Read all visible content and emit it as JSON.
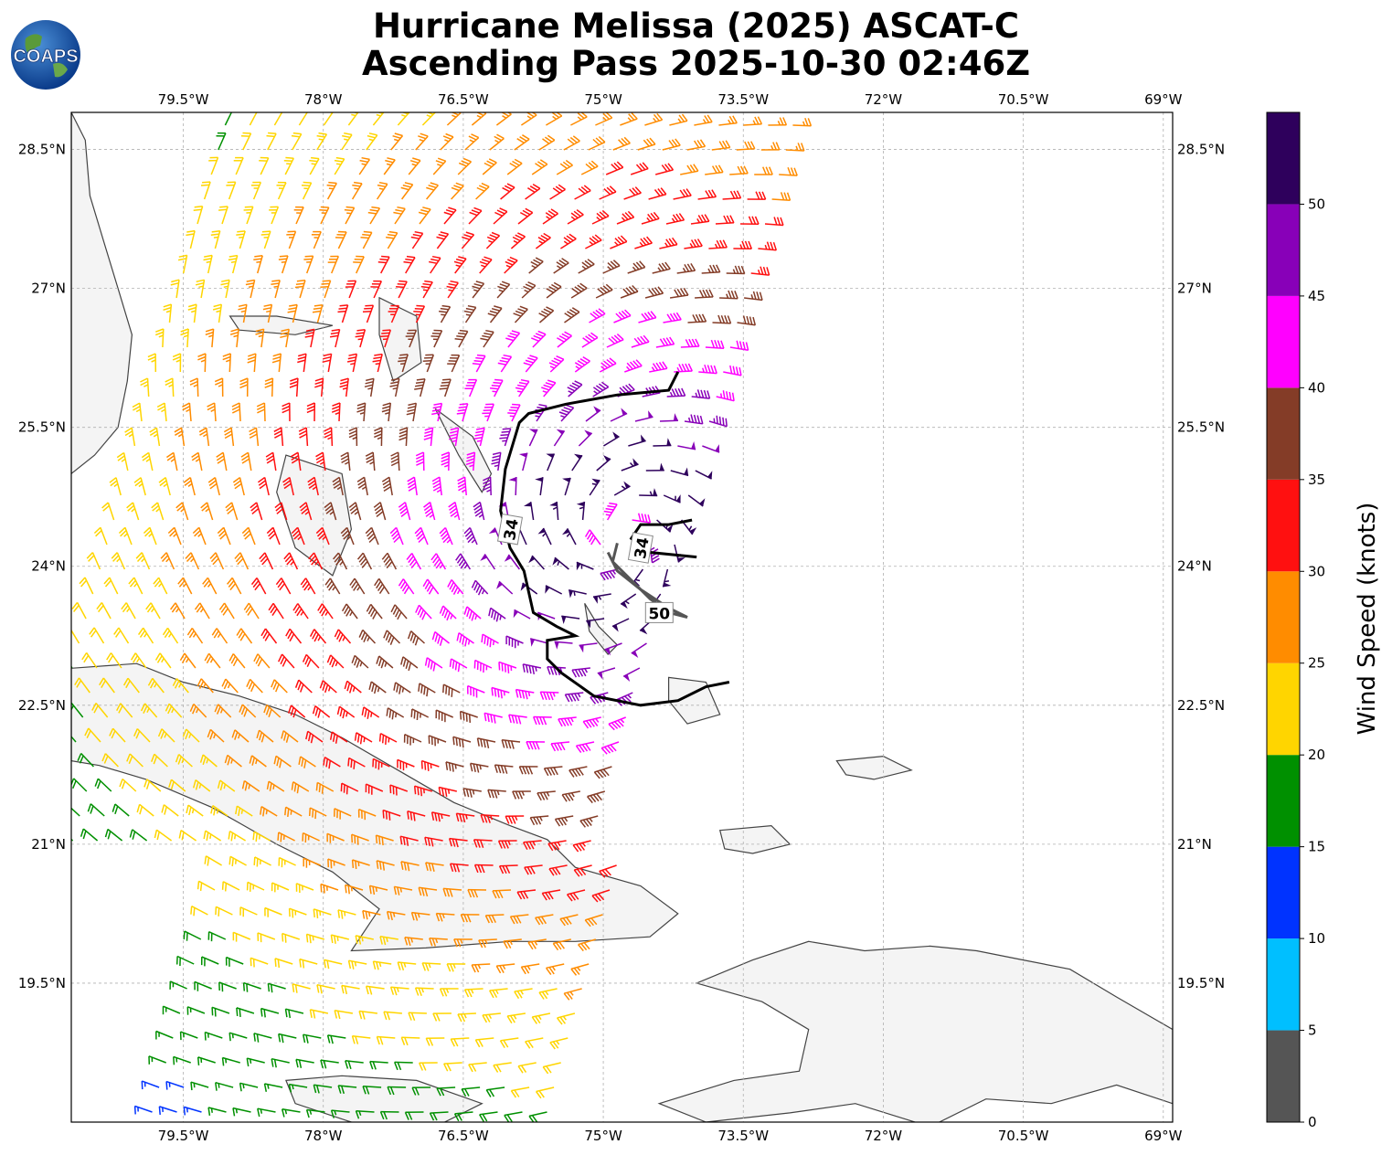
{
  "title": {
    "line1": "Hurricane Melissa (2025) ASCAT-C",
    "line2": "Ascending Pass 2025-10-30 02:46Z"
  },
  "logo": {
    "text": "COAPS",
    "icon": "globe-icon"
  },
  "map": {
    "lon_range": [
      -80.7,
      -68.9
    ],
    "lat_range": [
      18.0,
      28.9
    ],
    "lon_ticks": [
      {
        "value": -79.5,
        "label": "79.5°W"
      },
      {
        "value": -78.0,
        "label": "78°W"
      },
      {
        "value": -76.5,
        "label": "76.5°W"
      },
      {
        "value": -75.0,
        "label": "75°W"
      },
      {
        "value": -73.5,
        "label": "73.5°W"
      },
      {
        "value": -72.0,
        "label": "72°W"
      },
      {
        "value": -70.5,
        "label": "70.5°W"
      },
      {
        "value": -69.0,
        "label": "69°W"
      }
    ],
    "lat_ticks": [
      {
        "value": 28.5,
        "label": "28.5°N"
      },
      {
        "value": 27.0,
        "label": "27°N"
      },
      {
        "value": 25.5,
        "label": "25.5°N"
      },
      {
        "value": 24.0,
        "label": "24°N"
      },
      {
        "value": 22.5,
        "label": "22.5°N"
      },
      {
        "value": 21.0,
        "label": "21°N"
      },
      {
        "value": 19.5,
        "label": "19.5°N"
      }
    ],
    "gridlines": true,
    "storm_center": {
      "lon": -74.8,
      "lat": 24.3
    },
    "swath": {
      "west_lon": -80.3,
      "east_lon": -74.2,
      "shift_per_degree_lat": 0.28
    },
    "wind_radii_labels": [
      {
        "text": "34",
        "lon": -76.0,
        "lat": 24.4
      },
      {
        "text": "34",
        "lon": -74.6,
        "lat": 24.2
      },
      {
        "text": "50",
        "lon": -74.4,
        "lat": 23.5
      }
    ]
  },
  "colorbar": {
    "label": "Wind Speed (knots)",
    "ticks": [
      "0",
      "5",
      "10",
      "15",
      "20",
      "25",
      "30",
      "35",
      "40",
      "45",
      "50"
    ],
    "colors": [
      "#555555",
      "#00bfff",
      "#0033ff",
      "#009000",
      "#ffd500",
      "#ff8c00",
      "#ff1010",
      "#843c27",
      "#ff00ff",
      "#8800b8",
      "#2e005c"
    ],
    "max": 55
  },
  "colors": {
    "land": "#f4f4f4",
    "coastline": "#444444",
    "contour_34": "#000000",
    "contour_50": "#555555"
  }
}
